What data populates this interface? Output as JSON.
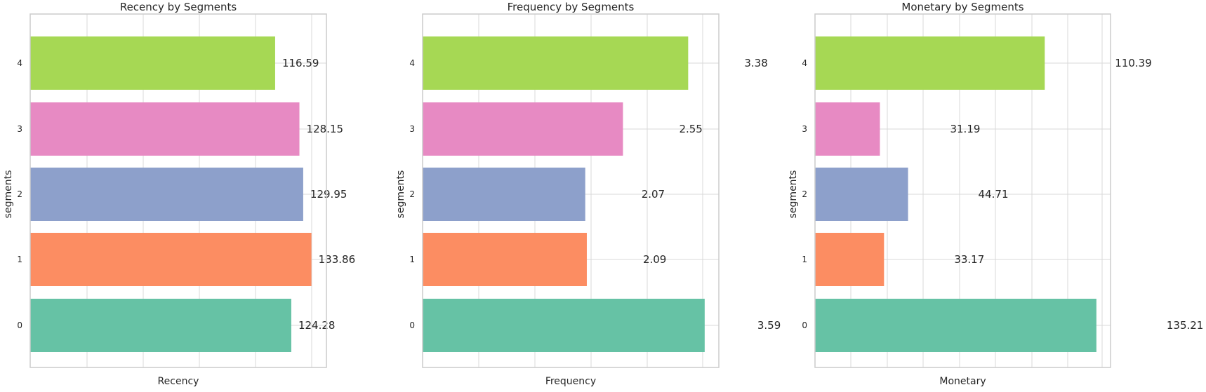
{
  "chart_data": [
    {
      "type": "bar",
      "orientation": "horizontal",
      "title": "Recency by Segments",
      "xlabel": "Recency",
      "ylabel": "segments",
      "categories": [
        "0",
        "1",
        "2",
        "3",
        "4"
      ],
      "values": [
        124.28,
        133.86,
        129.95,
        128.15,
        116.59
      ],
      "data_labels": [
        "124.28",
        "133.86",
        "129.95",
        "128.15",
        "116.59"
      ],
      "xlim": [
        0,
        141
      ],
      "grid": true
    },
    {
      "type": "bar",
      "orientation": "horizontal",
      "title": "Frequency by Segments",
      "xlabel": "Frequency",
      "ylabel": "segments",
      "categories": [
        "0",
        "1",
        "2",
        "3",
        "4"
      ],
      "values": [
        3.59,
        2.09,
        2.07,
        2.55,
        3.38
      ],
      "data_labels": [
        "3.59",
        "2.09",
        "2.07",
        "2.55",
        "3.38"
      ],
      "xlim": [
        0,
        3.77
      ],
      "grid": true
    },
    {
      "type": "bar",
      "orientation": "horizontal",
      "title": "Monetary by Segments",
      "xlabel": "Monetary",
      "ylabel": "segments",
      "categories": [
        "0",
        "1",
        "2",
        "3",
        "4"
      ],
      "values": [
        135.21,
        33.17,
        44.71,
        31.19,
        110.39
      ],
      "data_labels": [
        "135.21",
        "33.17",
        "44.71",
        "31.19",
        "110.39"
      ],
      "xlim": [
        0,
        142
      ],
      "grid": true
    }
  ],
  "colors": {
    "segments": [
      "#66c2a5",
      "#fc8d62",
      "#8da0cb",
      "#e78ac3",
      "#a6d854"
    ],
    "grid": "#d9d9d9",
    "frame": "#cccccc"
  }
}
